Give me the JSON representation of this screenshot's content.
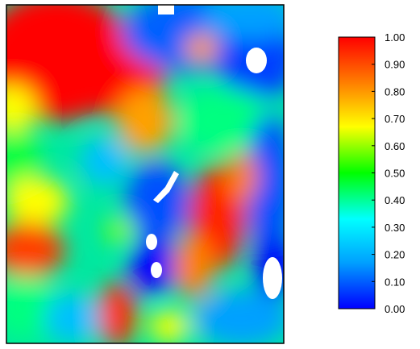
{
  "chart_data": {
    "type": "heatmap",
    "title": "",
    "xlabel": "",
    "ylabel": "",
    "colorbar": {
      "range": [
        0.0,
        1.0
      ],
      "ticks": [
        "0.00",
        "0.10",
        "0.20",
        "0.30",
        "0.40",
        "0.50",
        "0.60",
        "0.70",
        "0.80",
        "0.90",
        "1.00"
      ],
      "tick_values": [
        0.0,
        0.1,
        0.2,
        0.3,
        0.4,
        0.5,
        0.6,
        0.7,
        0.8,
        0.9,
        1.0
      ],
      "colormap": "jet",
      "stops": [
        "#0000ff",
        "#00a0ff",
        "#00ffff",
        "#00ff00",
        "#ffff00",
        "#ff8000",
        "#ff0000"
      ]
    },
    "missing_color": "#ffffff",
    "grid": false,
    "legend": "right"
  }
}
